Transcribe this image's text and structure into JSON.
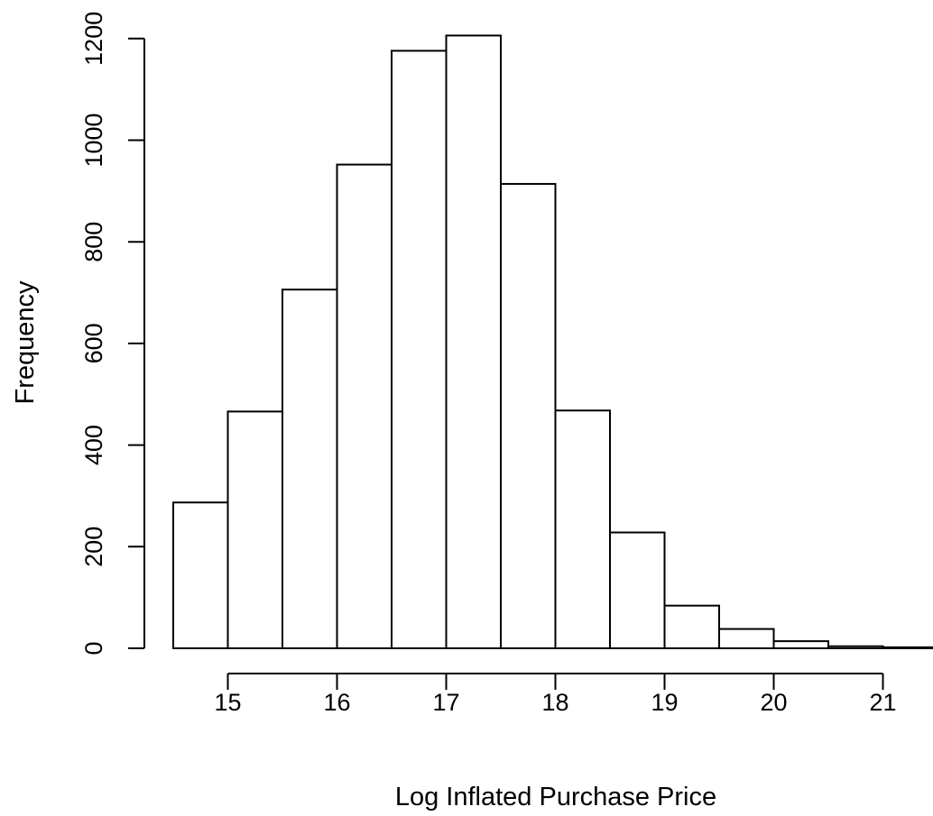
{
  "chart_data": {
    "type": "bar",
    "title": "",
    "xlabel": "Log Inflated Purchase Price",
    "ylabel": "Frequency",
    "bins": [
      {
        "x0": 14.5,
        "x1": 15.0,
        "count": 287
      },
      {
        "x0": 15.0,
        "x1": 15.5,
        "count": 466
      },
      {
        "x0": 15.5,
        "x1": 16.0,
        "count": 706
      },
      {
        "x0": 16.0,
        "x1": 16.5,
        "count": 952
      },
      {
        "x0": 16.5,
        "x1": 17.0,
        "count": 1176
      },
      {
        "x0": 17.0,
        "x1": 17.5,
        "count": 1206
      },
      {
        "x0": 17.5,
        "x1": 18.0,
        "count": 914
      },
      {
        "x0": 18.0,
        "x1": 18.5,
        "count": 468
      },
      {
        "x0": 18.5,
        "x1": 19.0,
        "count": 228
      },
      {
        "x0": 19.0,
        "x1": 19.5,
        "count": 84
      },
      {
        "x0": 19.5,
        "x1": 20.0,
        "count": 38
      },
      {
        "x0": 20.0,
        "x1": 20.5,
        "count": 14
      },
      {
        "x0": 20.5,
        "x1": 21.0,
        "count": 4
      },
      {
        "x0": 21.0,
        "x1": 21.5,
        "count": 2
      }
    ],
    "x_ticks": [
      15,
      16,
      17,
      18,
      19,
      20,
      21
    ],
    "x_tick_labels": [
      "15",
      "16",
      "17",
      "18",
      "19",
      "20",
      "21"
    ],
    "y_ticks": [
      0,
      200,
      400,
      600,
      800,
      1000,
      1200
    ],
    "y_tick_labels": [
      "0",
      "200",
      "400",
      "600",
      "800",
      "1000",
      "1200"
    ],
    "grid": false,
    "legend": "none",
    "colors": {
      "bar_fill": "#ffffff",
      "bar_stroke": "#000000",
      "axis": "#000000"
    }
  }
}
